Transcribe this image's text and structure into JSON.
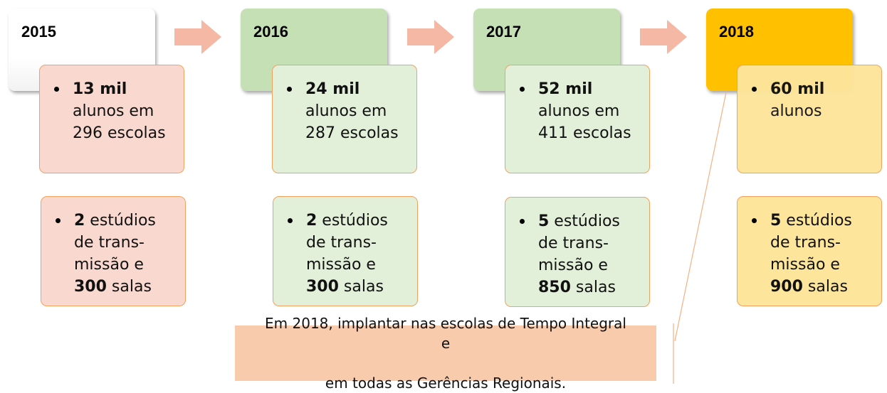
{
  "columns": [
    {
      "year": "2015",
      "students_value": "13 mil",
      "students_text": "alunos em",
      "schools_text": "296 escolas",
      "studios_value": "2",
      "studios_text1": " estúdios",
      "studios_text2": "de trans-",
      "studios_text3": "missão e",
      "rooms_value": "300",
      "rooms_text": " salas",
      "colors": {
        "year": "#ffffff",
        "card": "#f9d9cf"
      }
    },
    {
      "year": "2016",
      "students_value": "24 mil",
      "students_text": "alunos em",
      "schools_text": "287 escolas",
      "studios_value": "2",
      "studios_text1": " estúdios",
      "studios_text2": "de trans-",
      "studios_text3": "missão e",
      "rooms_value": "300",
      "rooms_text": " salas",
      "colors": {
        "year": "#c5e0b4",
        "card": "#e2efd9"
      }
    },
    {
      "year": "2017",
      "students_value": "52 mil",
      "students_text": "alunos em",
      "schools_text": "411 escolas",
      "studios_value": "5",
      "studios_text1": " estúdios",
      "studios_text2": "de trans-",
      "studios_text3": "missão e",
      "rooms_value": "850",
      "rooms_text": " salas",
      "colors": {
        "year": "#c5e0b4",
        "card": "#e2efd9"
      }
    },
    {
      "year": "2018",
      "students_value": "60 mil",
      "students_text": "alunos",
      "schools_text": "",
      "studios_value": "5",
      "studios_text1": " estúdios",
      "studios_text2": "de trans-",
      "studios_text3": "missão e",
      "rooms_value": "900",
      "rooms_text": " salas",
      "colors": {
        "year": "#ffc000",
        "card": "#fde59b"
      }
    }
  ],
  "note": {
    "line1": "Em 2018, implantar nas escolas de Tempo Integral e",
    "line2": "em todas as Gerências Regionais."
  },
  "colors": {
    "arrow": "#f4b8a4",
    "card_border": "#f2a15f",
    "note_bg": "#f8cbad"
  }
}
